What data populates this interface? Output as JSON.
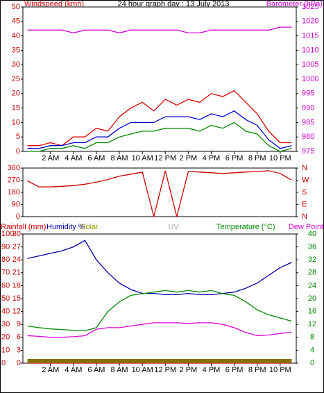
{
  "chart_data": [
    {
      "type": "line",
      "title": "24 hour graph day : 13 July 2013",
      "y_label": "Windspeed (kmh)",
      "y2_label": "Barometer (hPa)",
      "x": [
        0,
        1,
        2,
        3,
        4,
        5,
        6,
        7,
        8,
        9,
        10,
        11,
        12,
        13,
        14,
        15,
        16,
        17,
        18,
        19,
        20,
        21,
        22,
        23
      ],
      "xlim": [
        -0.4,
        23.4
      ],
      "xticks": [
        {
          "value": 2,
          "label": "2 AM"
        },
        {
          "value": 4,
          "label": "4 AM"
        },
        {
          "value": 6,
          "label": "6 AM"
        },
        {
          "value": 8,
          "label": "8 AM"
        },
        {
          "value": 10,
          "label": "10 AM"
        },
        {
          "value": 12,
          "label": "12 PM"
        },
        {
          "value": 14,
          "label": "2 PM"
        },
        {
          "value": 16,
          "label": "4 PM"
        },
        {
          "value": 18,
          "label": "6 PM"
        },
        {
          "value": 20,
          "label": "8 PM"
        },
        {
          "value": 22,
          "label": "10 PM"
        }
      ],
      "ylim": [
        0,
        50
      ],
      "yticks": [
        0,
        5,
        10,
        15,
        20,
        25,
        30,
        35,
        40,
        45,
        50
      ],
      "y_color": "#cc0000",
      "y2lim": [
        975,
        1025
      ],
      "y2ticks": [
        975,
        980,
        985,
        990,
        995,
        1000,
        1005,
        1010,
        1015,
        1020,
        1025
      ],
      "y2_color": "#cc00cc",
      "series": [
        {
          "color": "#dd0000",
          "values": [
            2,
            2,
            3,
            2,
            5,
            5,
            8,
            7,
            12,
            15,
            17,
            14,
            18,
            16,
            18,
            17,
            20,
            19,
            21,
            17,
            13,
            7,
            3,
            3
          ]
        },
        {
          "color": "#0000cc",
          "values": [
            1,
            1,
            2,
            2,
            3,
            3,
            5,
            5,
            8,
            10,
            10,
            10,
            12,
            12,
            12,
            11,
            13,
            12,
            14,
            11,
            9,
            4,
            1,
            2
          ]
        },
        {
          "color": "#008800",
          "values": [
            0,
            0,
            1,
            1,
            2,
            1,
            3,
            3,
            5,
            6,
            7,
            7,
            8,
            8,
            8,
            7,
            9,
            8,
            10,
            7,
            6,
            2,
            0,
            1
          ]
        },
        {
          "color": "#cc00cc",
          "axis": "y2",
          "values": [
            1017,
            1017,
            1017,
            1017,
            1016,
            1017,
            1017,
            1017,
            1016,
            1017,
            1017,
            1017,
            1017,
            1017,
            1016,
            1016,
            1017,
            1017,
            1017,
            1017,
            1017,
            1017,
            1018,
            1018
          ]
        }
      ]
    },
    {
      "type": "line",
      "x": [
        0,
        1,
        2,
        3,
        4,
        5,
        6,
        7,
        8,
        9,
        10,
        11,
        12,
        13,
        14,
        15,
        16,
        17,
        18,
        19,
        20,
        21,
        22,
        23
      ],
      "xlim": [
        -0.4,
        23.4
      ],
      "ylim": [
        0,
        360
      ],
      "yticks": [
        0,
        90,
        180,
        270,
        360
      ],
      "y_color": "#cc0000",
      "y2lim": [
        0,
        360
      ],
      "y2ticks": [
        {
          "value": 0,
          "label": "N"
        },
        {
          "value": 90,
          "label": "E"
        },
        {
          "value": 180,
          "label": "S"
        },
        {
          "value": 270,
          "label": "W"
        },
        {
          "value": 360,
          "label": "N"
        }
      ],
      "y2_color": "#cc0000",
      "series": [
        {
          "color": "#cc0000",
          "values": [
            265,
            220,
            220,
            225,
            230,
            240,
            255,
            275,
            300,
            315,
            330,
            0,
            340,
            0,
            335,
            330,
            325,
            320,
            325,
            330,
            335,
            340,
            320,
            270
          ]
        }
      ]
    },
    {
      "type": "line",
      "x": [
        0,
        1,
        2,
        3,
        4,
        5,
        6,
        7,
        8,
        9,
        10,
        11,
        12,
        13,
        14,
        15,
        16,
        17,
        18,
        19,
        20,
        21,
        22,
        23
      ],
      "xlim": [
        -0.4,
        23.4
      ],
      "xticks": [
        {
          "value": 2,
          "label": "2 AM"
        },
        {
          "value": 4,
          "label": "4 AM"
        },
        {
          "value": 6,
          "label": "6 AM"
        },
        {
          "value": 8,
          "label": "8 AM"
        },
        {
          "value": 10,
          "label": "10 AM"
        },
        {
          "value": 12,
          "label": "12 PM"
        },
        {
          "value": 14,
          "label": "2 PM"
        },
        {
          "value": 16,
          "label": "4 PM"
        },
        {
          "value": 18,
          "label": "6 PM"
        },
        {
          "value": 20,
          "label": "8 PM"
        },
        {
          "value": 22,
          "label": "10 PM"
        }
      ],
      "ylim": [
        0,
        100
      ],
      "yticks": [
        0,
        10,
        20,
        30,
        40,
        50,
        60,
        70,
        80,
        90,
        100
      ],
      "y_color": "#cc0000",
      "y3lim": [
        0,
        30
      ],
      "y3ticks": [
        0,
        3,
        6,
        9,
        12,
        15,
        18,
        21,
        24,
        27,
        30
      ],
      "y3_color": "#cc0000",
      "y2lim": [
        0,
        40
      ],
      "y2ticks": [
        0,
        4,
        8,
        12,
        16,
        20,
        24,
        28,
        32,
        36,
        40
      ],
      "y2_color": "#008800",
      "series": [
        {
          "name": "Rainfall (mm)",
          "color": "#cc0000",
          "axis": "y3",
          "values": [
            0,
            0,
            0,
            0,
            0,
            0,
            0,
            0,
            0,
            0,
            0,
            0,
            0,
            0,
            0,
            0,
            0,
            0,
            0,
            0,
            0,
            0,
            0,
            0
          ]
        },
        {
          "name": "Humidity %",
          "color": "#0000aa",
          "values": [
            81,
            83,
            85,
            87,
            90,
            95,
            80,
            70,
            62,
            57,
            54,
            54,
            53,
            53,
            54,
            53,
            53,
            54,
            55,
            58,
            62,
            68,
            74,
            78
          ]
        },
        {
          "name": "Solar",
          "color": "#8b6d00",
          "values": [
            0,
            0,
            0,
            0,
            0,
            0,
            0,
            0,
            0,
            0,
            0,
            0,
            0,
            0,
            0,
            0,
            0,
            0,
            0,
            0,
            0,
            0,
            0,
            0
          ]
        },
        {
          "name": "UV",
          "color": "#aaaaaa"
        },
        {
          "name": "Temperature (°C)",
          "color": "#008800",
          "axis": "y2",
          "values": [
            11.5,
            11,
            10.6,
            10.4,
            10.2,
            10,
            11,
            16,
            19,
            21,
            21.5,
            22,
            22.5,
            22,
            22.5,
            22,
            22.5,
            21.5,
            21,
            19,
            16.5,
            15,
            14,
            13
          ]
        },
        {
          "name": "Dew Point",
          "color": "#dd00dd",
          "axis": "y2",
          "values": [
            8.5,
            8.3,
            8,
            8,
            8.2,
            8.5,
            10.5,
            11,
            11,
            11.5,
            12,
            12.5,
            12.5,
            12.5,
            12.3,
            12.5,
            12.5,
            12,
            11,
            9.5,
            8.5,
            8.7,
            9.2,
            9.6
          ]
        }
      ]
    }
  ]
}
